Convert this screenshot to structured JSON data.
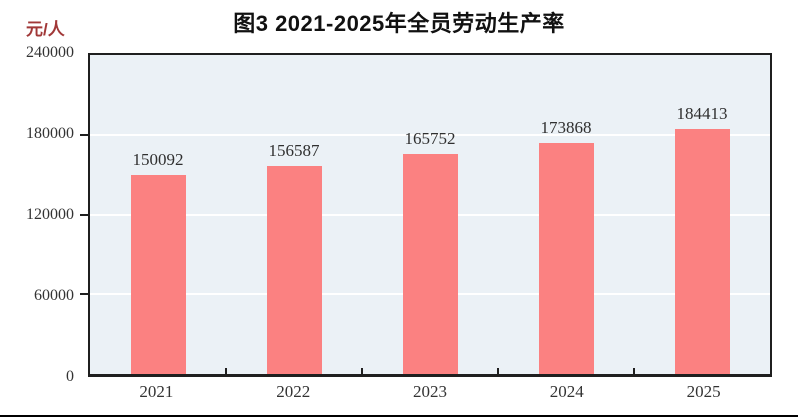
{
  "figure": {
    "title": "图3  2021-2025年全员劳动生产率",
    "unit_label": "元/人"
  },
  "chart_data": {
    "type": "bar",
    "title": "图3 2021-2025年全员劳动生产率",
    "xlabel": "",
    "ylabel": "元/人",
    "categories": [
      "2021",
      "2022",
      "2023",
      "2024",
      "2025"
    ],
    "values": [
      150092,
      156587,
      165752,
      173868,
      184413
    ],
    "yticks": [
      "0",
      "60000",
      "120000",
      "180000",
      "240000"
    ],
    "ylim": [
      0,
      240000
    ],
    "grid": "horizontal",
    "gridline_values": [
      60000,
      120000,
      180000
    ],
    "legend_position": "none",
    "data_labels": true
  },
  "colors": {
    "bar": "#fb8181",
    "plot_bg": "#ebf1f6",
    "axis": "#1f1f1f",
    "gridline": "#ffffff",
    "unit_label": "#a13838",
    "tick_text": "#333333"
  }
}
